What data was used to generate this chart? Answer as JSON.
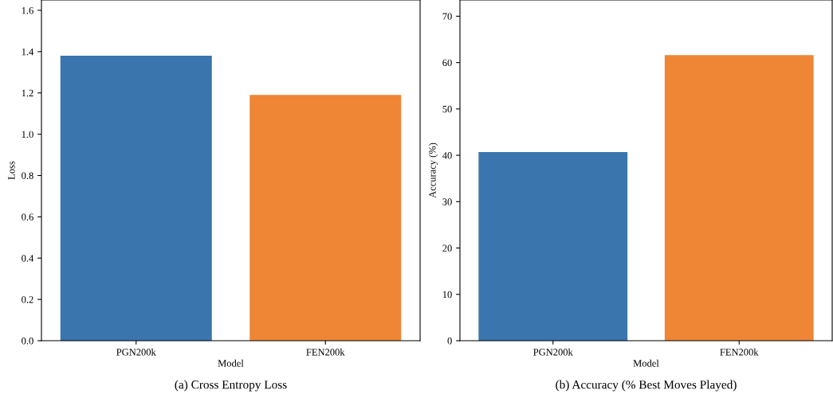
{
  "chart_data": [
    {
      "type": "bar",
      "title": "(a) Cross Entropy Loss",
      "xlabel": "Model",
      "ylabel": "Loss",
      "categories": [
        "PGN200k",
        "FEN200k"
      ],
      "values": [
        1.38,
        1.19
      ],
      "colors": [
        "#3a75ae",
        "#ee8636"
      ],
      "ylim": [
        0,
        1.65
      ],
      "yticks": [
        {
          "value": 0,
          "label": "0.0"
        },
        0.2,
        0.4,
        0.6,
        0.8,
        {
          "value": 1,
          "label": "1.0"
        },
        1.2,
        1.4,
        1.6
      ],
      "grid": false,
      "legend": false
    },
    {
      "type": "bar",
      "title": "(b) Accuracy (% Best Moves Played)",
      "xlabel": "Model",
      "ylabel": "Accuracy (%)",
      "categories": [
        "PGN200k",
        "FEN200k"
      ],
      "values": [
        40.7,
        61.6
      ],
      "colors": [
        "#3a75ae",
        "#ee8636"
      ],
      "ylim": [
        0,
        73.5
      ],
      "yticks": [
        0,
        10,
        20,
        30,
        40,
        50,
        60,
        70
      ],
      "grid": false,
      "legend": false
    }
  ]
}
